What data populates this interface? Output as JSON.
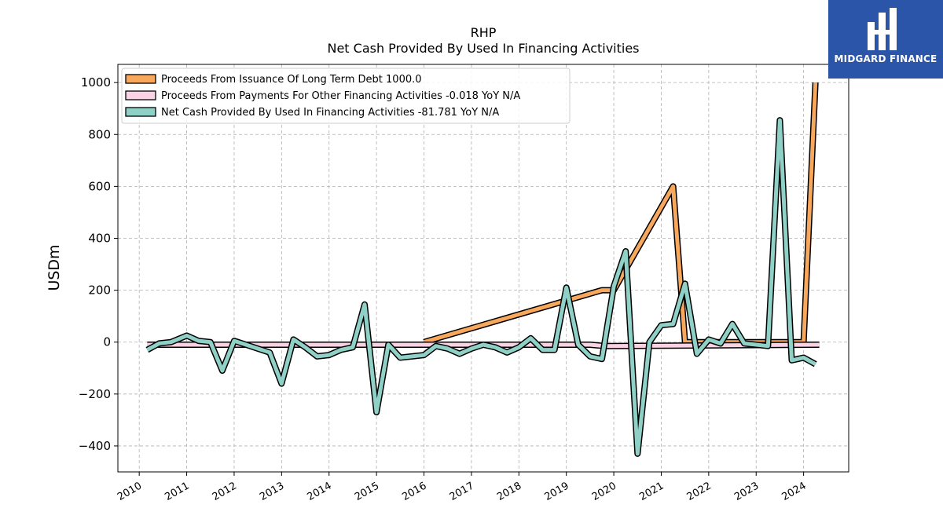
{
  "logo": {
    "text": "MIDGARD FINANCE",
    "color": "#2b55a8"
  },
  "chart_data": {
    "type": "line",
    "title": "RHP",
    "subtitle": "Net Cash Provided By Used In Financing Activities",
    "xlabel": "",
    "ylabel": "USDm",
    "xlim": [
      2009.55,
      2024.95
    ],
    "ylim": [
      -500,
      1070
    ],
    "yticks": [
      -400,
      -200,
      0,
      200,
      400,
      600,
      800,
      1000
    ],
    "yticklabels": [
      "−400",
      "−200",
      "0",
      "200",
      "400",
      "600",
      "800",
      "1000"
    ],
    "xticks": [
      2010,
      2011,
      2012,
      2013,
      2014,
      2015,
      2016,
      2017,
      2018,
      2019,
      2020,
      2021,
      2022,
      2023,
      2024
    ],
    "xticklabels": [
      "2010",
      "2011",
      "2012",
      "2013",
      "2014",
      "2015",
      "2016",
      "2017",
      "2018",
      "2019",
      "2020",
      "2021",
      "2022",
      "2023",
      "2024"
    ],
    "grid": true,
    "legend_position": "upper-left",
    "series": [
      {
        "name": "Proceeds From Issuance Of Long Term Debt",
        "legend": "Proceeds From Issuance Of Long Term Debt  1000.0",
        "color": "#f7a85c",
        "x": [
          2016.0,
          2019.75,
          2020.0,
          2021.25,
          2021.5,
          2023.75,
          2024.0,
          2024.25
        ],
        "y": [
          0,
          200,
          200,
          600,
          0,
          0,
          0,
          1000
        ]
      },
      {
        "name": "Proceeds From Payments For Other Financing Activities",
        "legend": "Proceeds From Payments For Other Financing Activities  -0.018 YoY N/A",
        "color": "#f9d3e3",
        "x": [
          2010.17,
          2013.75,
          2019.5,
          2019.8,
          2024.33
        ],
        "y": [
          -10,
          -10,
          -10,
          -15,
          -10
        ]
      },
      {
        "name": "Net Cash Provided By Used In Financing Activities",
        "legend": "Net Cash Provided By Used In Financing Activities  -81.781 YoY N/A",
        "color": "#8fd1c6",
        "x": [
          2010.17,
          2010.42,
          2010.67,
          2011.0,
          2011.25,
          2011.5,
          2011.75,
          2012.0,
          2012.25,
          2012.5,
          2012.75,
          2013.0,
          2013.25,
          2013.5,
          2013.75,
          2014.0,
          2014.25,
          2014.5,
          2014.75,
          2015.0,
          2015.25,
          2015.5,
          2015.75,
          2016.0,
          2016.25,
          2016.5,
          2016.75,
          2017.0,
          2017.25,
          2017.5,
          2017.75,
          2018.0,
          2018.25,
          2018.5,
          2018.75,
          2019.0,
          2019.25,
          2019.5,
          2019.75,
          2020.0,
          2020.25,
          2020.5,
          2020.75,
          2021.0,
          2021.25,
          2021.5,
          2021.75,
          2022.0,
          2022.25,
          2022.5,
          2022.75,
          2023.0,
          2023.25,
          2023.5,
          2023.75,
          2024.0,
          2024.25
        ],
        "y": [
          -30,
          -5,
          0,
          25,
          5,
          0,
          -110,
          5,
          -10,
          -25,
          -40,
          -160,
          10,
          -20,
          -55,
          -50,
          -30,
          -20,
          145,
          -270,
          -10,
          -60,
          -55,
          -50,
          -15,
          -25,
          -45,
          -25,
          -10,
          -20,
          -40,
          -20,
          15,
          -30,
          -30,
          210,
          -10,
          -55,
          -65,
          215,
          350,
          -430,
          0,
          65,
          70,
          225,
          -45,
          10,
          -5,
          70,
          -5,
          -10,
          -15,
          855,
          -70,
          -60,
          -85
        ]
      }
    ]
  }
}
